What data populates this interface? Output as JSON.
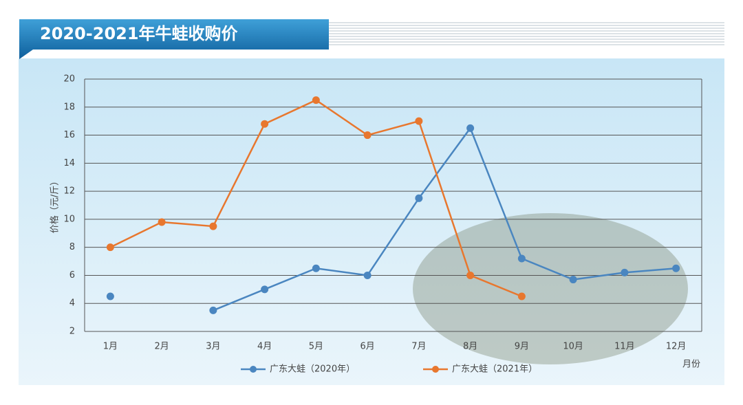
{
  "chart_data": {
    "type": "line",
    "title": "2020-2021年牛蛙收购价",
    "y_label": "价格（元/斤）",
    "x_label": "月份",
    "categories": [
      "1月",
      "2月",
      "3月",
      "4月",
      "5月",
      "6月",
      "7月",
      "8月",
      "9月",
      "10月",
      "11月",
      "12月"
    ],
    "series": [
      {
        "name": "广东大蛙（2020年）",
        "color": "#4a86c0",
        "values": [
          4.5,
          null,
          3.5,
          5,
          6.5,
          6,
          11.5,
          16.5,
          7.2,
          5.7,
          6.2,
          6.5
        ]
      },
      {
        "name": "广东大蛙（2021年）",
        "color": "#e8772e",
        "values": [
          8,
          9.8,
          9.5,
          16.8,
          18.5,
          16,
          17,
          6,
          4.5,
          null,
          null,
          null
        ]
      }
    ],
    "ylim": [
      2,
      20
    ],
    "yticks": [
      2,
      4,
      6,
      8,
      10,
      12,
      14,
      16,
      18,
      20
    ],
    "grid": true
  }
}
